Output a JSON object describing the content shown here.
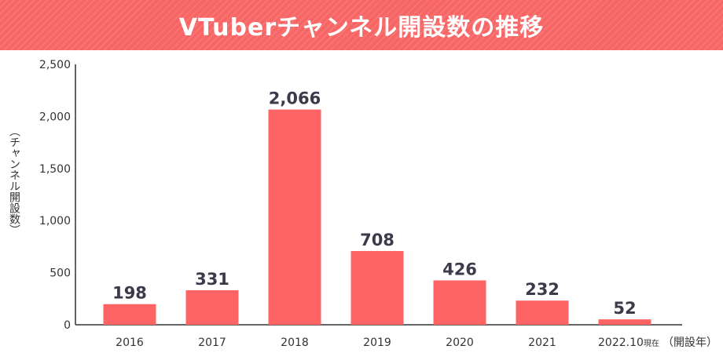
{
  "title": "VTuberチャンネル開設数の推移",
  "chart_data": {
    "type": "bar",
    "categories": [
      "2016",
      "2017",
      "2018",
      "2019",
      "2020",
      "2021",
      "2022.10"
    ],
    "category_note": "現在",
    "values": [
      198,
      331,
      2066,
      708,
      426,
      232,
      52
    ],
    "value_labels": [
      "198",
      "331",
      "2,066",
      "708",
      "426",
      "232",
      "52"
    ],
    "yticks": [
      "0",
      "500",
      "1,000",
      "1,500",
      "2,000",
      "2,500"
    ],
    "ytick_values": [
      0,
      500,
      1000,
      1500,
      2000,
      2500
    ],
    "ylim": [
      0,
      2500
    ],
    "xlabel": "（開設年）",
    "ylabel": "（チャンネル開設数）",
    "grid": false,
    "colors": {
      "bar": "#ff6464",
      "axis": "#333333",
      "banner": "#f76565"
    }
  }
}
